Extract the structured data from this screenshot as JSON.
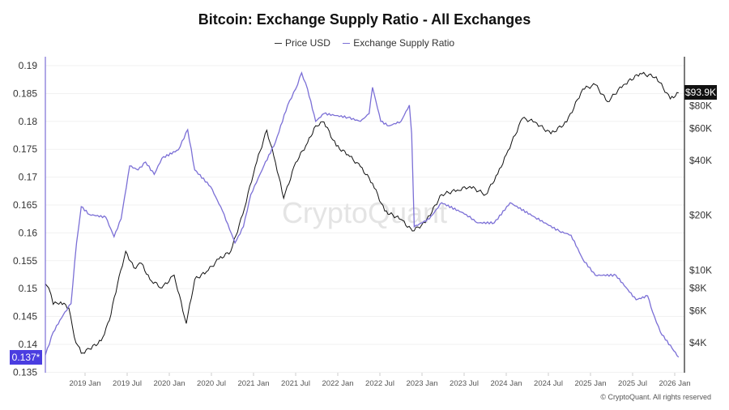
{
  "chart_data": {
    "type": "line",
    "title": "Bitcoin: Exchange Supply Ratio - All Exchanges",
    "legend": {
      "placement": "top",
      "entries": [
        "Price USD",
        "Exchange Supply Ratio"
      ]
    },
    "x_ticks": [
      "2019 Jan",
      "2019 Jul",
      "2020 Jan",
      "2020 Jul",
      "2021 Jan",
      "2021 Jul",
      "2022 Jan",
      "2022 Jul",
      "2023 Jan",
      "2023 Jul",
      "2024 Jan",
      "2024 Jul",
      "2025 Jan",
      "2025 Jul",
      "2026 Jan"
    ],
    "y_left": {
      "ticks": [
        "0.19",
        "0.185",
        "0.18",
        "0.175",
        "0.17",
        "0.165",
        "0.16",
        "0.155",
        "0.15",
        "0.145",
        "0.14",
        "0.135"
      ],
      "range": [
        0.135,
        0.19
      ],
      "last_value_label": "0.137*"
    },
    "y_right": {
      "scale": "log",
      "ticks": [
        "$80K",
        "$60K",
        "$40K",
        "$20K",
        "$10K",
        "$8K",
        "$6K",
        "$4K"
      ],
      "tick_values": [
        80000,
        60000,
        40000,
        20000,
        10000,
        8000,
        6000,
        4000
      ],
      "last_value_label": "$93.9K"
    },
    "grid": true,
    "watermark": "CryptoQuant",
    "series": [
      {
        "name": "Price USD",
        "axis": "right",
        "color": "#111111",
        "points": [
          [
            "2018-07-12",
            8400
          ],
          [
            "2018-07-26",
            8000
          ],
          [
            "2018-08-15",
            6500
          ],
          [
            "2018-09-17",
            6700
          ],
          [
            "2018-10-22",
            6200
          ],
          [
            "2018-11-15",
            4300
          ],
          [
            "2018-12-15",
            3500
          ],
          [
            "2019-01-20",
            3700
          ],
          [
            "2019-03-10",
            4100
          ],
          [
            "2019-04-15",
            5300
          ],
          [
            "2019-05-20",
            8400
          ],
          [
            "2019-06-25",
            12700
          ],
          [
            "2019-07-30",
            10300
          ],
          [
            "2019-09-02",
            10900
          ],
          [
            "2019-10-08",
            8900
          ],
          [
            "2019-11-30",
            8000
          ],
          [
            "2020-01-22",
            9400
          ],
          [
            "2020-03-14",
            5100
          ],
          [
            "2020-04-20",
            8900
          ],
          [
            "2020-06-10",
            9800
          ],
          [
            "2020-08-03",
            11500
          ],
          [
            "2020-09-24",
            12700
          ],
          [
            "2020-11-15",
            20200
          ],
          [
            "2021-01-08",
            37000
          ],
          [
            "2021-02-28",
            58600
          ],
          [
            "2021-04-05",
            39000
          ],
          [
            "2021-05-10",
            24800
          ],
          [
            "2021-07-01",
            39000
          ],
          [
            "2021-08-22",
            50000
          ],
          [
            "2021-09-27",
            62000
          ],
          [
            "2021-11-02",
            65000
          ],
          [
            "2021-12-25",
            48000
          ],
          [
            "2022-02-15",
            43000
          ],
          [
            "2022-04-08",
            37000
          ],
          [
            "2022-05-30",
            30000
          ],
          [
            "2022-07-22",
            21100
          ],
          [
            "2022-10-01",
            19000
          ],
          [
            "2022-11-20",
            16400
          ],
          [
            "2023-01-15",
            18200
          ],
          [
            "2023-03-25",
            26000
          ],
          [
            "2023-06-02",
            27500
          ],
          [
            "2023-07-26",
            28800
          ],
          [
            "2023-10-03",
            26000
          ],
          [
            "2023-11-25",
            33700
          ],
          [
            "2024-01-01",
            43000
          ],
          [
            "2024-03-10",
            68000
          ],
          [
            "2024-05-04",
            65000
          ],
          [
            "2024-07-12",
            56000
          ],
          [
            "2024-09-20",
            65000
          ],
          [
            "2024-11-28",
            98500
          ],
          [
            "2025-01-22",
            104000
          ],
          [
            "2025-03-14",
            84000
          ],
          [
            "2025-05-22",
            104000
          ],
          [
            "2025-08-03",
            120000
          ],
          [
            "2025-10-12",
            115000
          ],
          [
            "2025-12-12",
            87000
          ],
          [
            "2026-01-18",
            93900
          ]
        ]
      },
      {
        "name": "Exchange Supply Ratio",
        "axis": "left",
        "color": "#7b6fd6",
        "points": [
          [
            "2018-07-12",
            0.1381
          ],
          [
            "2018-08-15",
            0.1422
          ],
          [
            "2018-10-05",
            0.1458
          ],
          [
            "2018-11-01",
            0.1473
          ],
          [
            "2018-11-25",
            0.1582
          ],
          [
            "2018-12-15",
            0.1647
          ],
          [
            "2019-01-20",
            0.1633
          ],
          [
            "2019-03-30",
            0.1628
          ],
          [
            "2019-05-05",
            0.1593
          ],
          [
            "2019-06-05",
            0.1625
          ],
          [
            "2019-07-12",
            0.172
          ],
          [
            "2019-08-18",
            0.1713
          ],
          [
            "2019-09-20",
            0.1727
          ],
          [
            "2019-10-27",
            0.1705
          ],
          [
            "2019-11-30",
            0.1734
          ],
          [
            "2020-02-10",
            0.1749
          ],
          [
            "2020-03-20",
            0.1785
          ],
          [
            "2020-04-20",
            0.1713
          ],
          [
            "2020-06-28",
            0.1683
          ],
          [
            "2020-08-18",
            0.164
          ],
          [
            "2020-10-12",
            0.1582
          ],
          [
            "2020-11-18",
            0.1611
          ],
          [
            "2020-12-20",
            0.1669
          ],
          [
            "2021-02-15",
            0.172
          ],
          [
            "2021-04-05",
            0.1763
          ],
          [
            "2021-05-27",
            0.1829
          ],
          [
            "2021-07-01",
            0.1858
          ],
          [
            "2021-07-27",
            0.1887
          ],
          [
            "2021-08-22",
            0.1858
          ],
          [
            "2021-09-27",
            0.18
          ],
          [
            "2021-11-02",
            0.1814
          ],
          [
            "2022-02-15",
            0.1807
          ],
          [
            "2022-04-08",
            0.18
          ],
          [
            "2022-05-15",
            0.1814
          ],
          [
            "2022-05-30",
            0.1861
          ],
          [
            "2022-07-05",
            0.18
          ],
          [
            "2022-08-10",
            0.1792
          ],
          [
            "2022-10-01",
            0.18
          ],
          [
            "2022-11-07",
            0.1829
          ],
          [
            "2022-11-17",
            0.1778
          ],
          [
            "2022-11-28",
            0.1611
          ],
          [
            "2023-02-02",
            0.1625
          ],
          [
            "2023-03-25",
            0.1654
          ],
          [
            "2023-07-10",
            0.1633
          ],
          [
            "2023-08-28",
            0.1618
          ],
          [
            "2023-11-10",
            0.1618
          ],
          [
            "2024-01-18",
            0.1654
          ],
          [
            "2024-05-04",
            0.1628
          ],
          [
            "2024-08-18",
            0.1603
          ],
          [
            "2024-10-08",
            0.1596
          ],
          [
            "2024-11-28",
            0.1553
          ],
          [
            "2025-01-22",
            0.1524
          ],
          [
            "2025-04-20",
            0.1524
          ],
          [
            "2025-07-16",
            0.148
          ],
          [
            "2025-09-05",
            0.1487
          ],
          [
            "2025-09-27",
            0.1458
          ],
          [
            "2025-10-30",
            0.1422
          ],
          [
            "2025-12-20",
            0.1393
          ],
          [
            "2026-01-18",
            0.1377
          ]
        ]
      }
    ]
  },
  "footer": "© CryptoQuant. All rights reserved"
}
